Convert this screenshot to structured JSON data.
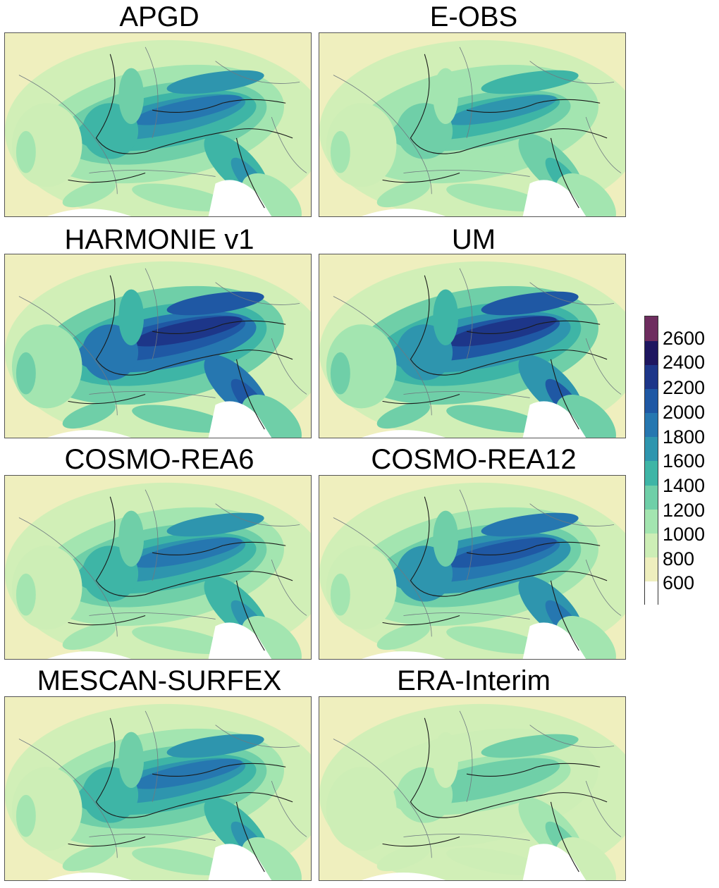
{
  "panels": [
    {
      "title": "APGD",
      "intensity": 1.0
    },
    {
      "title": "E-OBS",
      "intensity": 0.85
    },
    {
      "title": "HARMONIE v1",
      "intensity": 1.35
    },
    {
      "title": "UM",
      "intensity": 1.25
    },
    {
      "title": "COSMO-REA6",
      "intensity": 0.95
    },
    {
      "title": "COSMO-REA12",
      "intensity": 1.1
    },
    {
      "title": "MESCAN-SURFEX",
      "intensity": 1.0
    },
    {
      "title": "ERA-Interim",
      "intensity": 0.6
    }
  ],
  "colorbar": {
    "labels": [
      "2600",
      "2400",
      "2200",
      "2000",
      "1800",
      "1600",
      "1400",
      "1200",
      "1000",
      "800",
      "600"
    ],
    "colors": [
      "#ffffff",
      "#efefbe",
      "#cdeeb6",
      "#a3e5b0",
      "#6fcfa8",
      "#3eb5a6",
      "#2e95ae",
      "#2677b0",
      "#1f58a4",
      "#1d3689",
      "#1e1660",
      "#6e2d5f"
    ]
  }
}
